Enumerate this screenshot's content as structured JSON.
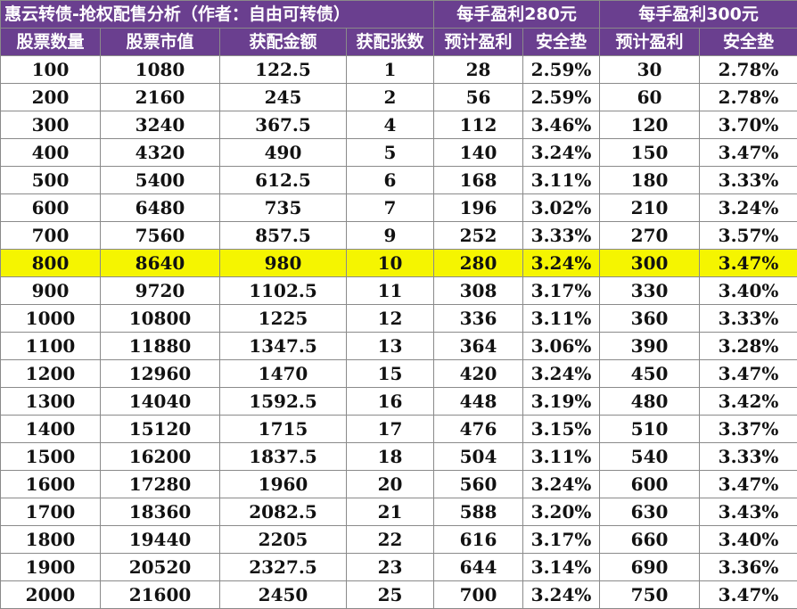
{
  "header": {
    "title": "惠云转债-抢权配售分析（作者：自由可转债）",
    "group_280": "每手盈利280元",
    "group_300": "每手盈利300元"
  },
  "columns": [
    "股票数量",
    "股票市值",
    "获配金额",
    "获配张数",
    "预计盈利",
    "安全垫",
    "预计盈利",
    "安全垫"
  ],
  "highlight_row_index": 7,
  "highlight_color": "#f5f500",
  "header_color": "#6a3f8f",
  "rows": [
    [
      "100",
      "1080",
      "122.5",
      "1",
      "28",
      "2.59%",
      "30",
      "2.78%"
    ],
    [
      "200",
      "2160",
      "245",
      "2",
      "56",
      "2.59%",
      "60",
      "2.78%"
    ],
    [
      "300",
      "3240",
      "367.5",
      "4",
      "112",
      "3.46%",
      "120",
      "3.70%"
    ],
    [
      "400",
      "4320",
      "490",
      "5",
      "140",
      "3.24%",
      "150",
      "3.47%"
    ],
    [
      "500",
      "5400",
      "612.5",
      "6",
      "168",
      "3.11%",
      "180",
      "3.33%"
    ],
    [
      "600",
      "6480",
      "735",
      "7",
      "196",
      "3.02%",
      "210",
      "3.24%"
    ],
    [
      "700",
      "7560",
      "857.5",
      "9",
      "252",
      "3.33%",
      "270",
      "3.57%"
    ],
    [
      "800",
      "8640",
      "980",
      "10",
      "280",
      "3.24%",
      "300",
      "3.47%"
    ],
    [
      "900",
      "9720",
      "1102.5",
      "11",
      "308",
      "3.17%",
      "330",
      "3.40%"
    ],
    [
      "1000",
      "10800",
      "1225",
      "12",
      "336",
      "3.11%",
      "360",
      "3.33%"
    ],
    [
      "1100",
      "11880",
      "1347.5",
      "13",
      "364",
      "3.06%",
      "390",
      "3.28%"
    ],
    [
      "1200",
      "12960",
      "1470",
      "15",
      "420",
      "3.24%",
      "450",
      "3.47%"
    ],
    [
      "1300",
      "14040",
      "1592.5",
      "16",
      "448",
      "3.19%",
      "480",
      "3.42%"
    ],
    [
      "1400",
      "15120",
      "1715",
      "17",
      "476",
      "3.15%",
      "510",
      "3.37%"
    ],
    [
      "1500",
      "16200",
      "1837.5",
      "18",
      "504",
      "3.11%",
      "540",
      "3.33%"
    ],
    [
      "1600",
      "17280",
      "1960",
      "20",
      "560",
      "3.24%",
      "600",
      "3.47%"
    ],
    [
      "1700",
      "18360",
      "2082.5",
      "21",
      "588",
      "3.20%",
      "630",
      "3.43%"
    ],
    [
      "1800",
      "19440",
      "2205",
      "22",
      "616",
      "3.17%",
      "660",
      "3.40%"
    ],
    [
      "1900",
      "20520",
      "2327.5",
      "23",
      "644",
      "3.14%",
      "690",
      "3.36%"
    ],
    [
      "2000",
      "21600",
      "2450",
      "25",
      "700",
      "3.24%",
      "750",
      "3.47%"
    ]
  ]
}
